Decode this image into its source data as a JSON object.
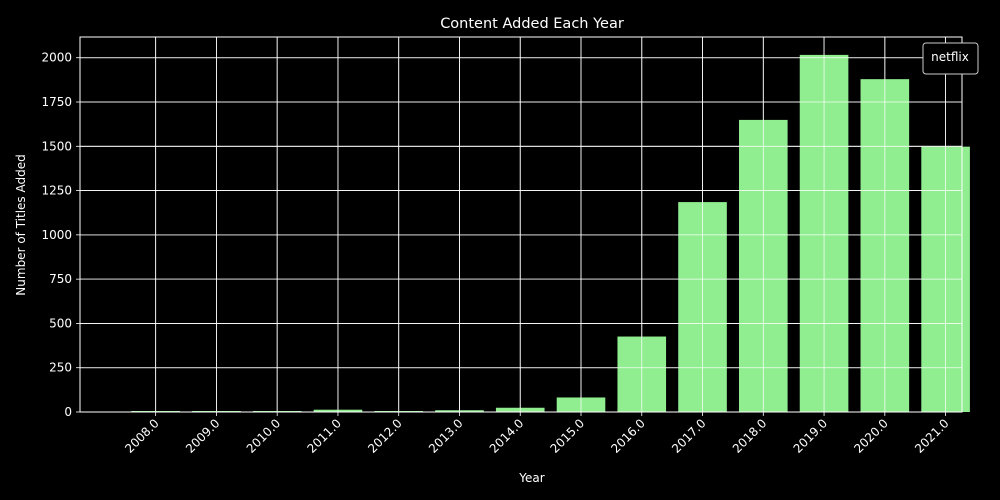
{
  "chart_data": {
    "type": "bar",
    "title": "Content Added Each Year",
    "xlabel": "Year",
    "ylabel": "Number of Titles Added",
    "categories": [
      "2008.0",
      "2009.0",
      "2010.0",
      "2011.0",
      "2012.0",
      "2013.0",
      "2014.0",
      "2015.0",
      "2016.0",
      "2017.0",
      "2018.0",
      "2019.0",
      "2020.0",
      "2021.0"
    ],
    "series": [
      {
        "name": "netflix",
        "values": [
          2,
          2,
          1,
          13,
          3,
          10,
          24,
          82,
          426,
          1185,
          1649,
          2016,
          1879,
          1498
        ]
      }
    ],
    "ylim": [
      0,
      2117
    ],
    "yticks": [
      0,
      250,
      500,
      750,
      1000,
      1250,
      1500,
      1750,
      2000
    ],
    "grid": true,
    "legend_position": "top-right",
    "background_color": "#000000",
    "bar_color": "#90ee90",
    "text_color": "#ffffff"
  }
}
